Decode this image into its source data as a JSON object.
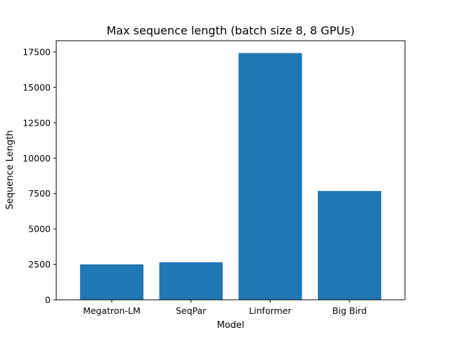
{
  "chart_data": {
    "type": "bar",
    "title": "Max sequence length (batch size 8, 8 GPUs)",
    "xlabel": "Model",
    "ylabel": "Sequence Length",
    "categories": [
      "Megatron-LM",
      "SeqPar",
      "Linformer",
      "Big Bird"
    ],
    "values": [
      2500,
      2650,
      17420,
      7680
    ],
    "ylim": [
      0,
      18290
    ],
    "yticks": [
      0,
      2500,
      5000,
      7500,
      10000,
      12500,
      15000,
      17500
    ],
    "bar_color": "#1f77b4",
    "grid": false,
    "legend": "none"
  }
}
